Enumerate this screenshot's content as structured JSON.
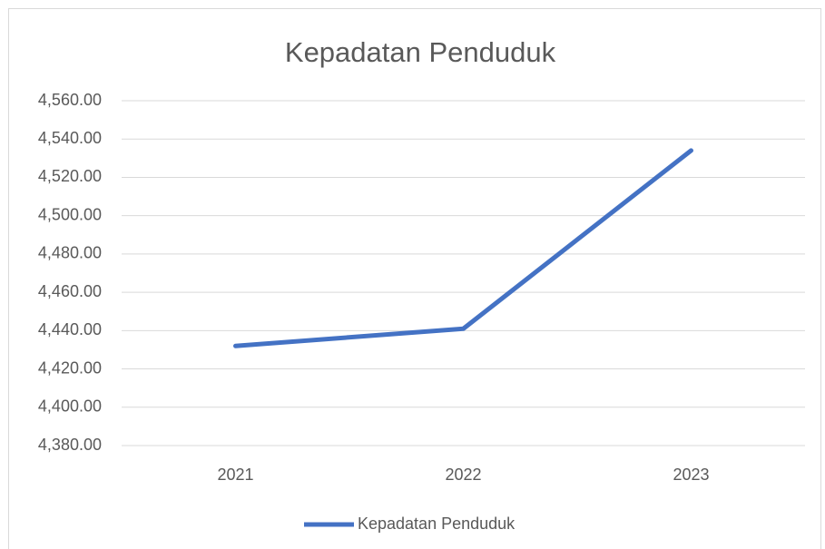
{
  "chart_data": {
    "type": "line",
    "title": "Kepadatan Penduduk",
    "categories": [
      "2021",
      "2022",
      "2023"
    ],
    "series": [
      {
        "name": "Kepadatan Penduduk",
        "color": "#4472c4",
        "values": [
          4432,
          4441,
          4534
        ]
      }
    ],
    "ylim": [
      4380,
      4560
    ],
    "yticks": [
      {
        "value": 4380,
        "label": "4,380.00"
      },
      {
        "value": 4400,
        "label": "4,400.00"
      },
      {
        "value": 4420,
        "label": "4,420.00"
      },
      {
        "value": 4440,
        "label": "4,440.00"
      },
      {
        "value": 4460,
        "label": "4,460.00"
      },
      {
        "value": 4480,
        "label": "4,480.00"
      },
      {
        "value": 4500,
        "label": "4,500.00"
      },
      {
        "value": 4520,
        "label": "4,520.00"
      },
      {
        "value": 4540,
        "label": "4,540.00"
      },
      {
        "value": 4560,
        "label": "4,560.00"
      }
    ],
    "grid": true,
    "legend": "bottom"
  }
}
